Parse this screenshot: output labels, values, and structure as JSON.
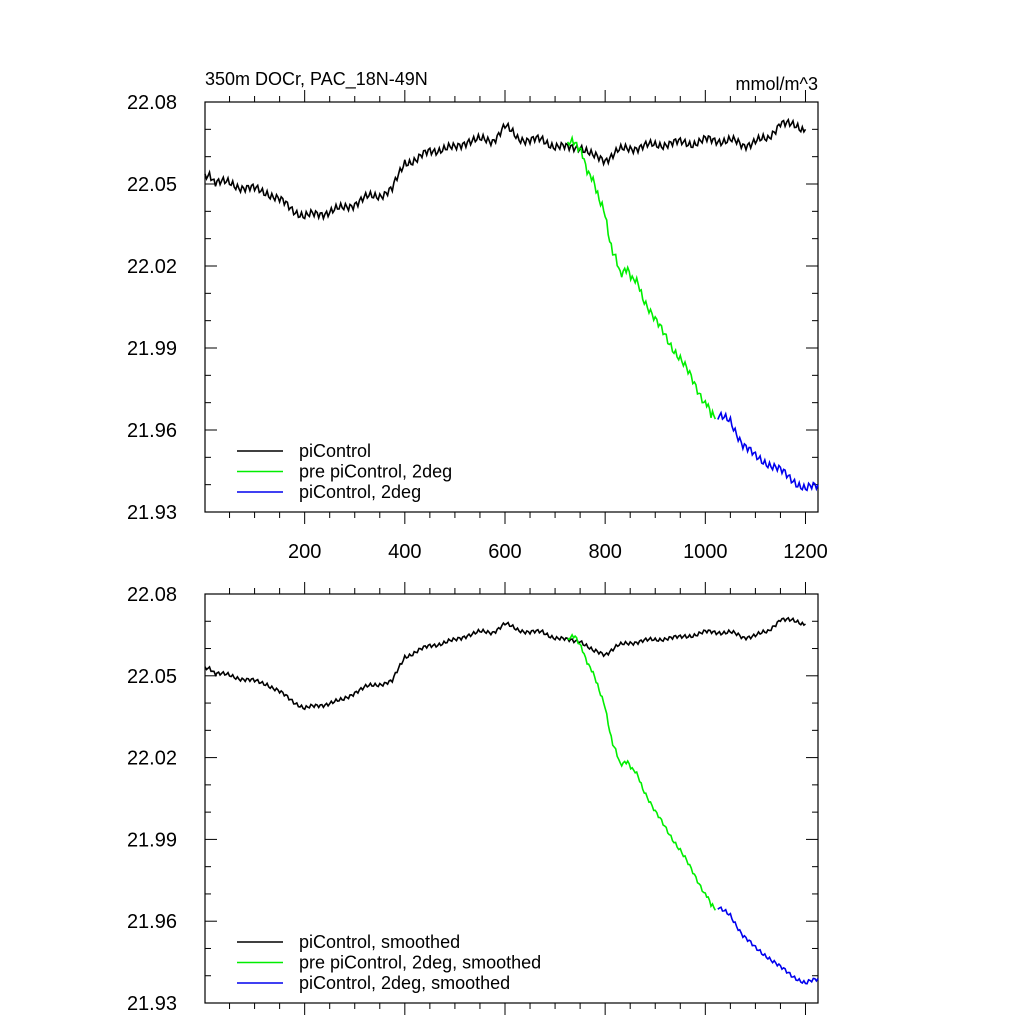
{
  "chart_data": [
    {
      "type": "line",
      "title": "350m DOCr, PAC_18N-49N",
      "units": "mmol/m^3",
      "xlim": [
        1,
        1225
      ],
      "ylim": [
        21.93,
        22.08
      ],
      "yticks": [
        "22.08",
        "22.05",
        "22.02",
        "21.99",
        "21.96",
        "21.93"
      ],
      "xticks": [
        "200",
        "400",
        "600",
        "800",
        "1000",
        "1200"
      ],
      "legend_position": "bottom-left",
      "series": [
        {
          "name": "piControl",
          "color": "#000000",
          "x": [
            1,
            25,
            50,
            75,
            100,
            125,
            150,
            175,
            200,
            225,
            250,
            275,
            300,
            325,
            350,
            375,
            400,
            425,
            450,
            475,
            500,
            525,
            550,
            575,
            600,
            625,
            650,
            675,
            700,
            725,
            750,
            775,
            800,
            825,
            850,
            875,
            900,
            925,
            950,
            975,
            1000,
            1025,
            1050,
            1075,
            1100,
            1125,
            1150,
            1175,
            1200
          ],
          "y": [
            22.053,
            22.051,
            22.05,
            22.049,
            22.048,
            22.047,
            22.044,
            22.041,
            22.038,
            22.039,
            22.04,
            22.041,
            22.043,
            22.045,
            22.046,
            22.048,
            22.058,
            22.059,
            22.062,
            22.063,
            22.063,
            22.066,
            22.066,
            22.066,
            22.071,
            22.067,
            22.066,
            22.066,
            22.064,
            22.063,
            22.064,
            22.06,
            22.059,
            22.062,
            22.063,
            22.064,
            22.064,
            22.065,
            22.065,
            22.065,
            22.066,
            22.066,
            22.066,
            22.064,
            22.066,
            22.066,
            22.073,
            22.071,
            22.07
          ]
        },
        {
          "name": "pre piControl, 2deg",
          "color": "#00ee00",
          "x": [
            725,
            740,
            755,
            770,
            785,
            800,
            815,
            830,
            845,
            860,
            875,
            900,
            925,
            950,
            975,
            1000,
            1020
          ],
          "y": [
            22.064,
            22.066,
            22.06,
            22.053,
            22.047,
            22.038,
            22.025,
            22.018,
            22.018,
            22.015,
            22.009,
            22.0,
            21.993,
            21.986,
            21.978,
            21.97,
            21.964
          ]
        },
        {
          "name": "piControl, 2deg",
          "color": "#0000ee",
          "x": [
            1025,
            1050,
            1075,
            1100,
            1125,
            1150,
            1175,
            1200,
            1225
          ],
          "y": [
            21.965,
            21.963,
            21.955,
            21.95,
            21.948,
            21.945,
            21.942,
            21.938,
            21.94
          ]
        }
      ]
    },
    {
      "type": "line",
      "xlim": [
        1,
        1225
      ],
      "ylim": [
        21.93,
        22.08
      ],
      "yticks": [
        "22.08",
        "22.05",
        "22.02",
        "21.99",
        "21.96",
        "21.93"
      ],
      "legend_position": "bottom-left",
      "series": [
        {
          "name": "piControl, smoothed",
          "color": "#000000",
          "x": [
            1,
            25,
            50,
            75,
            100,
            125,
            150,
            175,
            200,
            225,
            250,
            275,
            300,
            325,
            350,
            375,
            400,
            425,
            450,
            475,
            500,
            525,
            550,
            575,
            600,
            625,
            650,
            675,
            700,
            725,
            750,
            775,
            800,
            825,
            850,
            875,
            900,
            925,
            950,
            975,
            1000,
            1025,
            1050,
            1075,
            1100,
            1125,
            1150,
            1175,
            1200
          ],
          "y": [
            22.053,
            22.051,
            22.05,
            22.049,
            22.048,
            22.047,
            22.044,
            22.041,
            22.038,
            22.039,
            22.04,
            22.041,
            22.044,
            22.046,
            22.047,
            22.048,
            22.057,
            22.059,
            22.061,
            22.062,
            22.063,
            22.065,
            22.066,
            22.066,
            22.069,
            22.067,
            22.066,
            22.066,
            22.064,
            22.063,
            22.063,
            22.059,
            22.058,
            22.061,
            22.062,
            22.063,
            22.063,
            22.064,
            22.064,
            22.065,
            22.066,
            22.066,
            22.066,
            22.064,
            22.065,
            22.066,
            22.071,
            22.07,
            22.069
          ]
        },
        {
          "name": "pre piControl, 2deg, smoothed",
          "color": "#00ee00",
          "x": [
            725,
            740,
            755,
            770,
            785,
            800,
            815,
            830,
            845,
            860,
            875,
            900,
            925,
            950,
            975,
            1000,
            1020
          ],
          "y": [
            22.063,
            22.065,
            22.059,
            22.053,
            22.047,
            22.038,
            22.025,
            22.018,
            22.018,
            22.015,
            22.009,
            22.0,
            21.993,
            21.986,
            21.978,
            21.97,
            21.964
          ]
        },
        {
          "name": "piControl, 2deg, smoothed",
          "color": "#0000ee",
          "x": [
            1025,
            1050,
            1075,
            1100,
            1125,
            1150,
            1175,
            1200,
            1225
          ],
          "y": [
            21.965,
            21.962,
            21.955,
            21.95,
            21.947,
            21.943,
            21.94,
            21.937,
            21.939
          ]
        }
      ]
    }
  ]
}
